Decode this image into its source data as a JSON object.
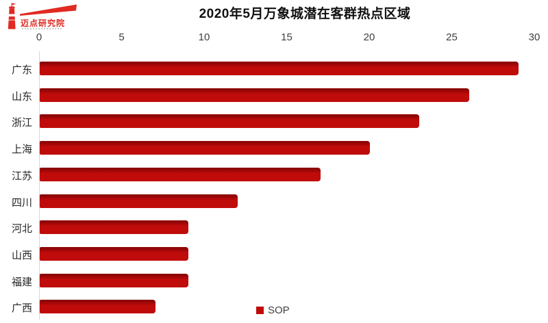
{
  "logo": {
    "text": "迈点研究院",
    "icon": "lighthouse-with-beam"
  },
  "header": {
    "title": "2020年5月万象城潜在客群热点区域"
  },
  "legend": {
    "label": "SOP"
  },
  "colors": {
    "bar": "#c00b0b",
    "bar_dark_edge": "#8d0505",
    "axis_line": "#d6d6d6",
    "tick_text": "#3d3d3d",
    "category_text": "#262626",
    "logo_red": "#e02a22"
  },
  "chart_data": {
    "type": "bar",
    "orientation": "horizontal",
    "title": "2020年5月万象城潜在客群热点区域",
    "categories": [
      "广东",
      "山东",
      "浙江",
      "上海",
      "江苏",
      "四川",
      "河北",
      "山西",
      "福建",
      "广西"
    ],
    "series": [
      {
        "name": "SOP",
        "values": [
          29,
          26,
          23,
          20,
          17,
          12,
          9,
          9,
          9,
          7
        ]
      }
    ],
    "xlabel": "",
    "ylabel": "",
    "xlim": [
      0,
      30
    ],
    "x_ticks": [
      0,
      5,
      10,
      15,
      20,
      25,
      30
    ],
    "grid": false,
    "legend_position": "bottom-center"
  }
}
